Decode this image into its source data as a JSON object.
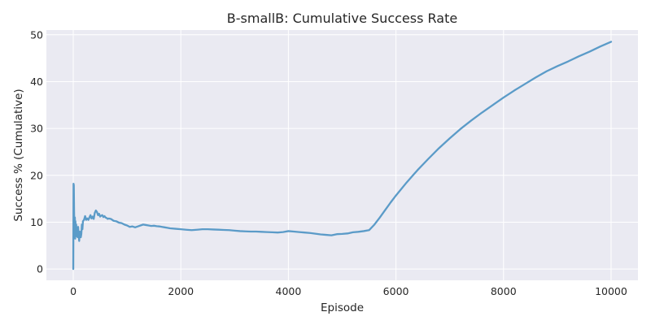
{
  "chart_data": {
    "type": "line",
    "title": "B-smallB: Cumulative Success Rate",
    "xlabel": "Episode",
    "ylabel": "Success % (Cumulative)",
    "xlim": [
      -500,
      10500
    ],
    "ylim": [
      -2.4,
      51
    ],
    "xticks": [
      0,
      2000,
      4000,
      6000,
      8000,
      10000
    ],
    "yticks": [
      0,
      10,
      20,
      30,
      40,
      50
    ],
    "grid": true,
    "background": "#eaeaf2",
    "grid_color": "#ffffff",
    "series": [
      {
        "color": "#5b9bc8",
        "x": [
          0,
          5,
          10,
          15,
          20,
          25,
          30,
          35,
          40,
          45,
          50,
          55,
          60,
          70,
          80,
          90,
          100,
          110,
          120,
          130,
          140,
          150,
          160,
          170,
          180,
          200,
          220,
          240,
          260,
          280,
          300,
          320,
          340,
          360,
          380,
          400,
          420,
          440,
          460,
          480,
          500,
          520,
          540,
          560,
          580,
          600,
          620,
          640,
          660,
          700,
          750,
          800,
          850,
          900,
          950,
          1000,
          1050,
          1100,
          1150,
          1200,
          1250,
          1300,
          1350,
          1400,
          1450,
          1500,
          1550,
          1600,
          1650,
          1700,
          1750,
          1800,
          1900,
          2000,
          2100,
          2200,
          2300,
          2400,
          2500,
          2600,
          2700,
          2800,
          2900,
          3000,
          3100,
          3200,
          3300,
          3400,
          3500,
          3600,
          3700,
          3800,
          3900,
          4000,
          4100,
          4200,
          4300,
          4400,
          4500,
          4600,
          4700,
          4800,
          4900,
          5000,
          5100,
          5200,
          5300,
          5400,
          5500,
          5600,
          5700,
          5800,
          5900,
          6000,
          6200,
          6400,
          6600,
          6800,
          7000,
          7200,
          7400,
          7600,
          7800,
          8000,
          8200,
          8400,
          8600,
          8800,
          9000,
          9200,
          9400,
          9600,
          9800,
          10000
        ],
        "values": [
          0,
          18.2,
          17.9,
          12.5,
          9,
          7.5,
          11,
          6.5,
          10.2,
          9,
          8,
          9.5,
          7,
          8.5,
          6.8,
          9,
          7.5,
          6,
          8,
          7,
          6.8,
          7.5,
          9.5,
          8.5,
          10.2,
          10.5,
          11.3,
          10.5,
          10.8,
          10.5,
          11,
          11.5,
          10.8,
          11.2,
          10.7,
          12,
          12.5,
          12.2,
          11.5,
          11.8,
          11.2,
          11.4,
          11.5,
          11.1,
          11.3,
          11,
          10.9,
          10.7,
          10.8,
          10.7,
          10.3,
          10.2,
          9.9,
          9.8,
          9.5,
          9.3,
          9,
          9.1,
          8.9,
          9.1,
          9.3,
          9.5,
          9.4,
          9.3,
          9.2,
          9.25,
          9.15,
          9.1,
          9,
          8.9,
          8.8,
          8.7,
          8.6,
          8.5,
          8.4,
          8.3,
          8.4,
          8.5,
          8.5,
          8.45,
          8.4,
          8.35,
          8.3,
          8.2,
          8.1,
          8.05,
          8,
          8,
          7.95,
          7.9,
          7.85,
          7.8,
          7.9,
          8.1,
          8,
          7.9,
          7.8,
          7.7,
          7.55,
          7.4,
          7.3,
          7.2,
          7.45,
          7.5,
          7.6,
          7.85,
          7.95,
          8.1,
          8.3,
          9.5,
          11,
          12.6,
          14.2,
          15.7,
          18.5,
          21.1,
          23.5,
          25.8,
          27.9,
          29.9,
          31.7,
          33.4,
          35,
          36.6,
          38.1,
          39.5,
          40.9,
          42.2,
          43.3,
          44.3,
          45.4,
          46.4,
          47.5,
          48.5
        ]
      }
    ]
  }
}
